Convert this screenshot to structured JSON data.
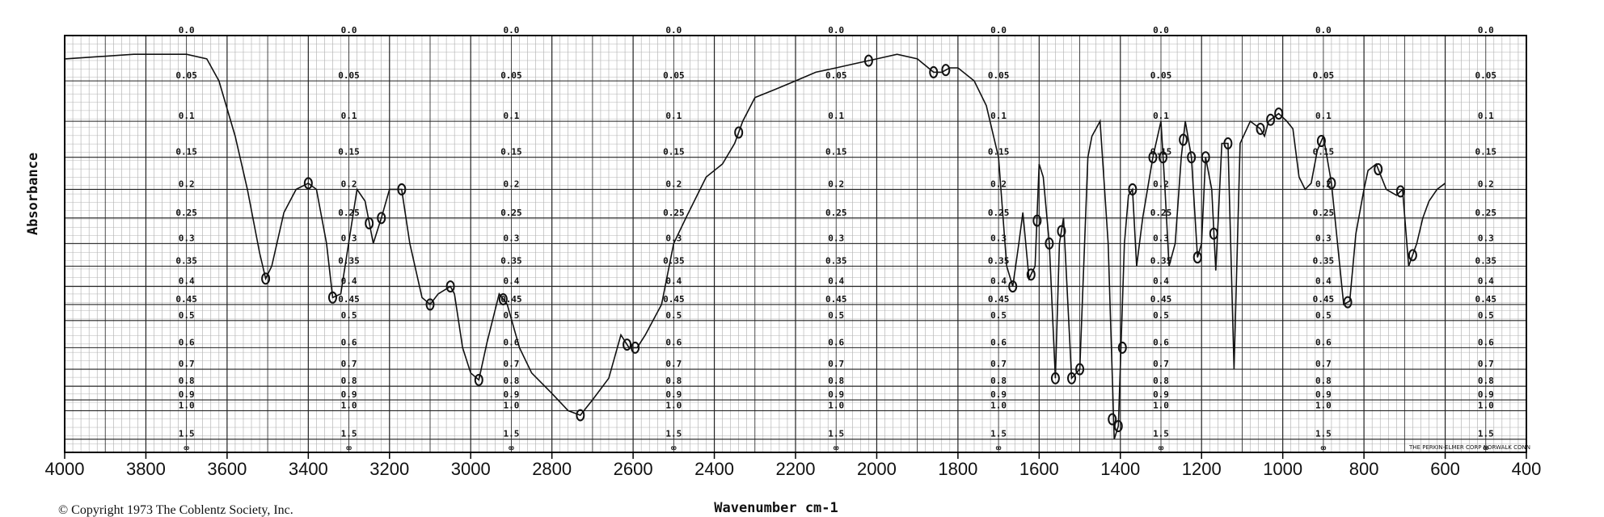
{
  "chart_data": {
    "type": "line",
    "xlabel": "Wavenumber cm-1",
    "ylabel": "Absorbance",
    "xlim": [
      4000,
      400
    ],
    "x_ticks": [
      4000,
      3800,
      3600,
      3400,
      3200,
      3000,
      2800,
      2600,
      2400,
      2200,
      2000,
      1800,
      1600,
      1400,
      1200,
      1000,
      800,
      600,
      400
    ],
    "x_tick_labels": [
      "4000",
      "3800",
      "3600",
      "3400",
      "3200",
      "3000",
      "2800",
      "2600",
      "2400",
      "2200",
      "2000",
      "1800",
      "1600",
      "1400",
      "1200",
      "1000",
      "800",
      "600",
      "400"
    ],
    "absorbance_scale": [
      "0.0",
      "0.05",
      "0.1",
      "0.15",
      "0.2",
      "0.25",
      "0.3",
      "0.35",
      "0.4",
      "0.45",
      "0.5",
      "0.6",
      "0.7",
      "0.8",
      "0.9",
      "1.0",
      "1.5",
      "∞"
    ],
    "absorbance_scale_values": [
      0.0,
      0.05,
      0.1,
      0.15,
      0.2,
      0.25,
      0.3,
      0.35,
      0.4,
      0.45,
      0.5,
      0.6,
      0.7,
      0.8,
      0.9,
      1.0,
      1.5,
      3.0
    ],
    "grid": true,
    "series": [
      {
        "x": [
          4000,
          3830,
          3810,
          3790,
          3780,
          3750,
          3700,
          3650,
          3620,
          3580,
          3550,
          3520,
          3505,
          3490,
          3460,
          3430,
          3400,
          3380,
          3355,
          3340,
          3320,
          3280,
          3260,
          3240,
          3220,
          3200,
          3170,
          3150,
          3120,
          3100,
          3080,
          3050,
          3040,
          3020,
          3000,
          2980,
          2960,
          2930,
          2910,
          2880,
          2850,
          2800,
          2760,
          2730,
          2700,
          2660,
          2630,
          2610,
          2590,
          2570,
          2530,
          2500,
          2470,
          2420,
          2380,
          2350,
          2330,
          2300,
          2250,
          2200,
          2150,
          2100,
          2050,
          2000,
          1950,
          1900,
          1860,
          1840,
          1820,
          1800,
          1760,
          1730,
          1700,
          1680,
          1665,
          1650,
          1640,
          1625,
          1610,
          1600,
          1590,
          1575,
          1560,
          1550,
          1540,
          1520,
          1500,
          1480,
          1470,
          1450,
          1430,
          1415,
          1405,
          1390,
          1380,
          1370,
          1360,
          1345,
          1320,
          1300,
          1290,
          1280,
          1265,
          1250,
          1240,
          1225,
          1210,
          1200,
          1190,
          1175,
          1165,
          1150,
          1135,
          1120,
          1105,
          1080,
          1055,
          1045,
          1035,
          1010,
          990,
          975,
          960,
          945,
          930,
          915,
          900,
          880,
          850,
          835,
          820,
          800,
          790,
          770,
          745,
          720,
          705,
          690,
          670,
          655,
          640,
          620,
          600
        ],
        "y": [
          0.025,
          0.02,
          0.02,
          0.02,
          0.02,
          0.02,
          0.02,
          0.025,
          0.05,
          0.12,
          0.2,
          0.32,
          0.38,
          0.35,
          0.24,
          0.2,
          0.19,
          0.2,
          0.3,
          0.43,
          0.42,
          0.2,
          0.22,
          0.3,
          0.25,
          0.2,
          0.2,
          0.3,
          0.43,
          0.45,
          0.42,
          0.4,
          0.42,
          0.6,
          0.72,
          0.76,
          0.58,
          0.42,
          0.45,
          0.6,
          0.72,
          0.85,
          1.0,
          1.05,
          0.9,
          0.75,
          0.55,
          0.6,
          0.6,
          0.55,
          0.45,
          0.3,
          0.25,
          0.18,
          0.16,
          0.13,
          0.1,
          0.07,
          0.06,
          0.05,
          0.04,
          0.035,
          0.03,
          0.025,
          0.02,
          0.025,
          0.04,
          0.04,
          0.035,
          0.035,
          0.05,
          0.08,
          0.15,
          0.35,
          0.4,
          0.3,
          0.24,
          0.38,
          0.35,
          0.16,
          0.18,
          0.3,
          0.75,
          0.3,
          0.25,
          0.75,
          0.7,
          0.15,
          0.12,
          0.1,
          0.3,
          1.5,
          1.2,
          0.3,
          0.21,
          0.2,
          0.35,
          0.25,
          0.15,
          0.1,
          0.2,
          0.35,
          0.3,
          0.15,
          0.1,
          0.15,
          0.33,
          0.3,
          0.15,
          0.2,
          0.36,
          0.13,
          0.13,
          0.7,
          0.13,
          0.1,
          0.11,
          0.12,
          0.1,
          0.09,
          0.1,
          0.11,
          0.18,
          0.2,
          0.19,
          0.14,
          0.12,
          0.19,
          0.45,
          0.44,
          0.28,
          0.2,
          0.17,
          0.16,
          0.2,
          0.21,
          0.2,
          0.35,
          0.3,
          0.25,
          0.22,
          0.2,
          0.19
        ]
      }
    ],
    "markers_x": [
      3505,
      3400,
      3340,
      3250,
      3220,
      3170,
      3100,
      3050,
      2980,
      2920,
      2730,
      2615,
      2595,
      2340,
      2020,
      1860,
      1830,
      1665,
      1620,
      1605,
      1575,
      1560,
      1545,
      1520,
      1500,
      1420,
      1405,
      1395,
      1370,
      1320,
      1295,
      1245,
      1225,
      1210,
      1190,
      1170,
      1135,
      1055,
      1030,
      1010,
      905,
      880,
      840,
      765,
      710,
      680
    ]
  },
  "footer": {
    "copyright": "© Copyright 1973 The Coblentz Society, Inc.",
    "manufacturer": "THE PERKIN-ELMER CORP NORWALK CONN"
  }
}
